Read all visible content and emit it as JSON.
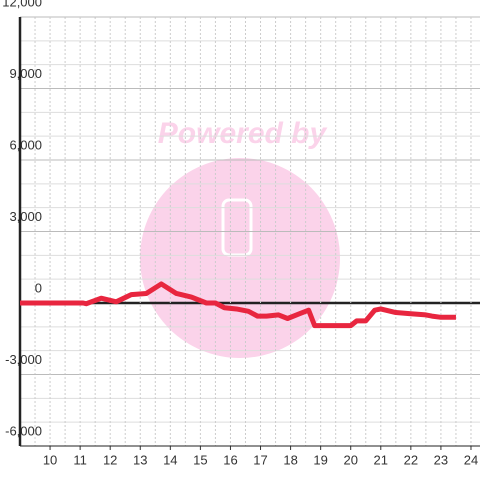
{
  "chart_data": {
    "type": "line",
    "watermark": "Powered by",
    "x": [
      9.0,
      11.1,
      11.2,
      11.7,
      12.2,
      12.7,
      13.2,
      13.7,
      14.2,
      14.7,
      15.2,
      15.5,
      15.8,
      16.2,
      16.6,
      16.9,
      17.2,
      17.6,
      17.9,
      18.3,
      18.6,
      18.8,
      19.5,
      20.0,
      20.2,
      20.5,
      20.8,
      21.0,
      21.5,
      22.0,
      22.5,
      22.7,
      23.0,
      23.5
    ],
    "series": [
      {
        "color": "#e8263f",
        "values": [
          0,
          0,
          -30,
          200,
          50,
          350,
          400,
          800,
          400,
          250,
          0,
          0,
          -200,
          -250,
          -350,
          -550,
          -550,
          -500,
          -650,
          -450,
          -300,
          -950,
          -950,
          -950,
          -750,
          -750,
          -300,
          -250,
          -400,
          -450,
          -500,
          -550,
          -600,
          -600
        ]
      }
    ],
    "xlim": [
      9.0,
      24.3
    ],
    "ylim": [
      -6000,
      12000
    ],
    "xticks": [
      10,
      11,
      12,
      13,
      14,
      15,
      16,
      17,
      18,
      19,
      20,
      21,
      22,
      23,
      24
    ],
    "yticks": [
      {
        "value": 12000,
        "label": "12,000"
      },
      {
        "value": 9000,
        "label": "9,000"
      },
      {
        "value": 6000,
        "label": "6,000"
      },
      {
        "value": 3000,
        "label": "3,000"
      },
      0,
      {
        "value": -3000,
        "label": "-3,000"
      },
      {
        "value": -6000,
        "label": "-6,000"
      }
    ],
    "yminor": [
      11000,
      10000,
      8000,
      7000,
      5000,
      4000,
      2000,
      1000,
      -1000,
      -2000,
      -4000,
      -5000
    ],
    "xminor": [
      9.5,
      10.5,
      11.5,
      12.5,
      13.5,
      14.5,
      15.5,
      16.5,
      17.5,
      18.5,
      19.5,
      20.5,
      21.5,
      22.5,
      23.5
    ],
    "grid": true
  }
}
